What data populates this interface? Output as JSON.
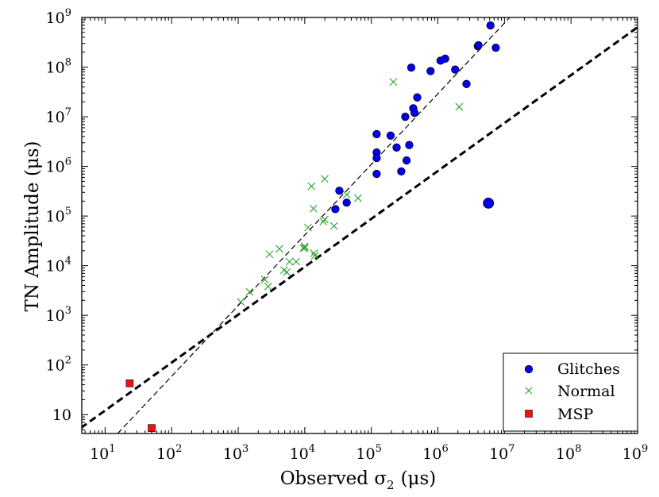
{
  "chart_data": {
    "type": "scatter",
    "xscale": "log",
    "yscale": "log",
    "xlim_exp": [
      0.65,
      9
    ],
    "ylim_exp": [
      0.62,
      9
    ],
    "xticks": [
      {
        "base": "10",
        "exp": "1",
        "value": 1
      },
      {
        "base": "10",
        "exp": "2",
        "value": 2
      },
      {
        "base": "10",
        "exp": "3",
        "value": 3
      },
      {
        "base": "10",
        "exp": "4",
        "value": 4
      },
      {
        "base": "10",
        "exp": "5",
        "value": 5
      },
      {
        "base": "10",
        "exp": "6",
        "value": 6
      },
      {
        "base": "10",
        "exp": "7",
        "value": 7
      },
      {
        "base": "10",
        "exp": "8",
        "value": 8
      },
      {
        "base": "10",
        "exp": "9",
        "value": 9
      }
    ],
    "yticks": [
      {
        "base": "10",
        "exp": "",
        "value": 1
      },
      {
        "base": "10",
        "exp": "2",
        "value": 2
      },
      {
        "base": "10",
        "exp": "3",
        "value": 3
      },
      {
        "base": "10",
        "exp": "4",
        "value": 4
      },
      {
        "base": "10",
        "exp": "5",
        "value": 5
      },
      {
        "base": "10",
        "exp": "6",
        "value": 6
      },
      {
        "base": "10",
        "exp": "7",
        "value": 7
      },
      {
        "base": "10",
        "exp": "8",
        "value": 8
      },
      {
        "base": "10",
        "exp": "9",
        "value": 9
      }
    ],
    "xlabel_main": "Observed σ",
    "xlabel_sub": "2",
    "xlabel_unit": "(μs)",
    "ylabel": "TN Amplitude (μs)",
    "legend": {
      "position": "lower-right",
      "entries": [
        {
          "label": "Glitches",
          "series": "glitches"
        },
        {
          "label": "Normal",
          "series": "normal"
        },
        {
          "label": "MSP",
          "series": "msp"
        }
      ]
    },
    "lines": [
      {
        "name": "thick-dashed",
        "x_exp": [
          0.5,
          9.1
        ],
        "y_exp": [
          0.6,
          8.9
        ],
        "style": "thick"
      },
      {
        "name": "thin-dashed",
        "x_exp": [
          1.19,
          7.08
        ],
        "y_exp": [
          0.62,
          9
        ],
        "style": "thin"
      }
    ],
    "series": {
      "glitches": {
        "color": "#0000ee",
        "points": [
          [
            5.08,
            6.65
          ],
          [
            5.08,
            6.28
          ],
          [
            5.08,
            6.17
          ],
          [
            5.08,
            5.85
          ],
          [
            5.29,
            6.62
          ],
          [
            5.38,
            6.38
          ],
          [
            5.45,
            5.9
          ],
          [
            5.51,
            7.0
          ],
          [
            5.53,
            6.12
          ],
          [
            5.57,
            6.43
          ],
          [
            5.6,
            7.99
          ],
          [
            5.63,
            7.17
          ],
          [
            5.65,
            7.08
          ],
          [
            5.69,
            7.39
          ],
          [
            5.89,
            7.92
          ],
          [
            6.04,
            8.13
          ],
          [
            6.11,
            8.17
          ],
          [
            6.26,
            7.95
          ],
          [
            6.43,
            7.66
          ],
          [
            6.6,
            8.42
          ],
          [
            6.61,
            8.44
          ],
          [
            6.79,
            8.84
          ],
          [
            6.87,
            8.39
          ],
          [
            4.52,
            5.51
          ],
          [
            4.63,
            5.27
          ],
          [
            4.46,
            5.14
          ]
        ],
        "big_point": [
          6.76,
          5.26
        ]
      },
      "normal": {
        "color": "#2aa02a",
        "points": [
          [
            3.04,
            3.27
          ],
          [
            3.17,
            3.47
          ],
          [
            3.4,
            3.72
          ],
          [
            3.45,
            3.58
          ],
          [
            3.47,
            4.23
          ],
          [
            3.62,
            4.34
          ],
          [
            3.69,
            3.91
          ],
          [
            3.73,
            3.87
          ],
          [
            3.77,
            4.08
          ],
          [
            3.87,
            4.08
          ],
          [
            3.98,
            4.35
          ],
          [
            4.0,
            4.39
          ],
          [
            4.0,
            4.36
          ],
          [
            4.05,
            4.77
          ],
          [
            4.1,
            5.6
          ],
          [
            4.13,
            5.15
          ],
          [
            4.14,
            4.25
          ],
          [
            4.15,
            4.2
          ],
          [
            4.28,
            4.89
          ],
          [
            4.3,
            5.75
          ],
          [
            4.3,
            4.93
          ],
          [
            4.44,
            4.8
          ],
          [
            4.63,
            5.43
          ],
          [
            4.8,
            5.36
          ],
          [
            5.33,
            7.7
          ],
          [
            6.32,
            7.2
          ]
        ]
      },
      "msp": {
        "color": "#ee1111",
        "points": [
          [
            1.37,
            1.63
          ],
          [
            1.7,
            0.73
          ]
        ]
      }
    }
  }
}
